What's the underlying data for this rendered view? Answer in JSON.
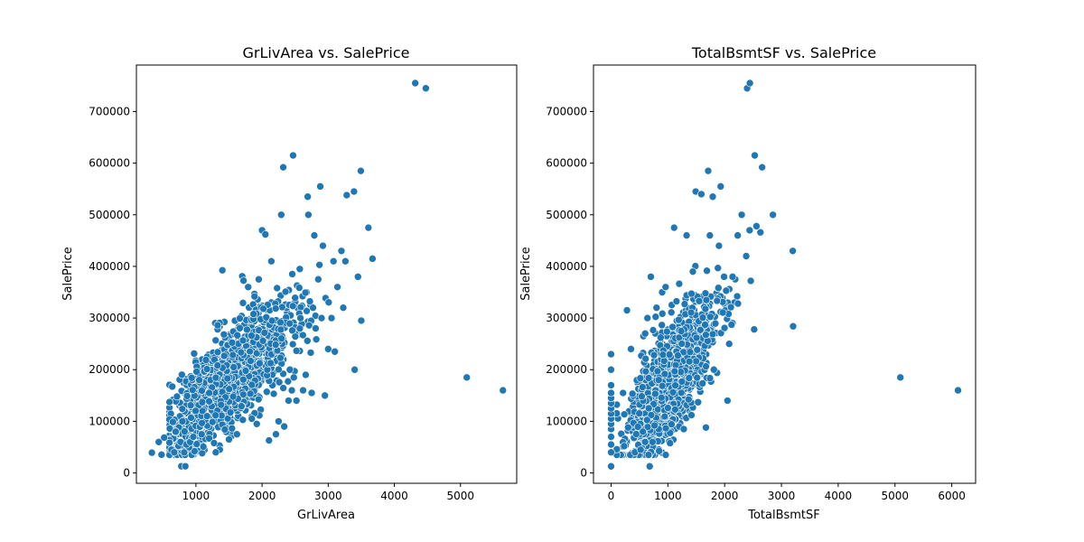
{
  "style": {
    "marker_color": "#1f77b4",
    "marker_edge": "#ffffff",
    "background": "#ffffff",
    "grid": false
  },
  "chart_data": [
    {
      "type": "scatter",
      "title": "GrLivArea vs. SalePrice",
      "xlabel": "GrLivArea",
      "ylabel": "SalePrice",
      "xlim": [
        100,
        5850
      ],
      "ylim": [
        -20000,
        790000
      ],
      "xticks": [
        1000,
        2000,
        3000,
        4000,
        5000
      ],
      "yticks": [
        0,
        100000,
        200000,
        300000,
        400000,
        500000,
        600000,
        700000
      ],
      "outliers": [
        [
          334,
          39300
        ],
        [
          438,
          60000
        ],
        [
          480,
          35311
        ],
        [
          520,
          68500
        ],
        [
          605,
          86000
        ],
        [
          630,
          45000
        ],
        [
          672,
          40000
        ],
        [
          694,
          80000
        ],
        [
          735,
          52500
        ],
        [
          768,
          60000
        ],
        [
          779,
          13000
        ],
        [
          796,
          100000
        ],
        [
          840,
          13000
        ],
        [
          858,
          55000
        ],
        [
          912,
          60000
        ],
        [
          960,
          70000
        ],
        [
          1012,
          56000
        ],
        [
          1050,
          180000
        ],
        [
          1086,
          75000
        ],
        [
          1096,
          137000
        ],
        [
          1168,
          110000
        ],
        [
          1200,
          155000
        ],
        [
          1300,
          40000
        ],
        [
          1328,
          286000
        ],
        [
          1380,
          132000
        ],
        [
          1400,
          392500
        ],
        [
          1500,
          65000
        ],
        [
          1620,
          75000
        ],
        [
          1700,
          381000
        ],
        [
          1720,
          372500
        ],
        [
          1790,
          360000
        ],
        [
          1845,
          105000
        ],
        [
          1920,
          95000
        ],
        [
          1950,
          375000
        ],
        [
          2000,
          470000
        ],
        [
          2020,
          318000
        ],
        [
          2050,
          462000
        ],
        [
          2105,
          63000
        ],
        [
          2140,
          410000
        ],
        [
          2210,
          75000
        ],
        [
          2250,
          100000
        ],
        [
          2290,
          500000
        ],
        [
          2320,
          592000
        ],
        [
          2335,
          90000
        ],
        [
          2400,
          140000
        ],
        [
          2420,
          200000
        ],
        [
          2450,
          160000
        ],
        [
          2469,
          615000
        ],
        [
          2480,
          185000
        ],
        [
          2520,
          140000
        ],
        [
          2570,
          395000
        ],
        [
          2580,
          300000
        ],
        [
          2620,
          160000
        ],
        [
          2660,
          190000
        ],
        [
          2690,
          535000
        ],
        [
          2700,
          500000
        ],
        [
          2750,
          155000
        ],
        [
          2770,
          320000
        ],
        [
          2790,
          460000
        ],
        [
          2810,
          280000
        ],
        [
          2850,
          375000
        ],
        [
          2880,
          555000
        ],
        [
          2900,
          300000
        ],
        [
          2920,
          440000
        ],
        [
          2950,
          150000
        ],
        [
          3000,
          240000
        ],
        [
          3050,
          300000
        ],
        [
          3080,
          410000
        ],
        [
          3100,
          235000
        ],
        [
          3140,
          360000
        ],
        [
          3200,
          430000
        ],
        [
          3228,
          320000
        ],
        [
          3260,
          410000
        ],
        [
          3280,
          538000
        ],
        [
          3390,
          545000
        ],
        [
          3400,
          200000
        ],
        [
          3450,
          380000
        ],
        [
          3493,
          585000
        ],
        [
          3500,
          295000
        ],
        [
          3608,
          475000
        ],
        [
          3670,
          415000
        ],
        [
          4316,
          755000
        ],
        [
          4476,
          745000
        ],
        [
          5095,
          185000
        ],
        [
          5642,
          160000
        ]
      ]
    },
    {
      "type": "scatter",
      "title": "TotalBsmtSF vs. SalePrice",
      "xlabel": "TotalBsmtSF",
      "ylabel": "SalePrice",
      "xlim": [
        -310,
        6420
      ],
      "ylim": [
        -20000,
        790000
      ],
      "xticks": [
        0,
        1000,
        2000,
        3000,
        4000,
        5000,
        6000
      ],
      "yticks": [
        0,
        100000,
        200000,
        300000,
        400000,
        500000,
        600000,
        700000
      ],
      "outliers": [
        [
          0,
          12800
        ],
        [
          0,
          40000
        ],
        [
          0,
          55000
        ],
        [
          0,
          70000
        ],
        [
          0,
          85000
        ],
        [
          0,
          95000
        ],
        [
          0,
          105000
        ],
        [
          0,
          115000
        ],
        [
          0,
          125000
        ],
        [
          0,
          135000
        ],
        [
          0,
          145000
        ],
        [
          0,
          155000
        ],
        [
          0,
          170000
        ],
        [
          0,
          200000
        ],
        [
          0,
          230000
        ],
        [
          280,
          315000
        ],
        [
          230,
          52000
        ],
        [
          300,
          88000
        ],
        [
          350,
          240000
        ],
        [
          420,
          40000
        ],
        [
          520,
          45000
        ],
        [
          560,
          80000
        ],
        [
          600,
          270000
        ],
        [
          640,
          300000
        ],
        [
          680,
          12800
        ],
        [
          700,
          380000
        ],
        [
          730,
          60000
        ],
        [
          800,
          320000
        ],
        [
          900,
          350000
        ],
        [
          960,
          360000
        ],
        [
          1110,
          475000
        ],
        [
          1200,
          90000
        ],
        [
          1280,
          85000
        ],
        [
          1330,
          460000
        ],
        [
          1440,
          390000
        ],
        [
          1490,
          545000
        ],
        [
          1590,
          540000
        ],
        [
          1670,
          88000
        ],
        [
          1710,
          585000
        ],
        [
          1740,
          460000
        ],
        [
          1790,
          535000
        ],
        [
          1810,
          200000
        ],
        [
          1900,
          440000
        ],
        [
          1930,
          555000
        ],
        [
          1990,
          380000
        ],
        [
          2050,
          140000
        ],
        [
          2080,
          250000
        ],
        [
          2140,
          380000
        ],
        [
          2230,
          460000
        ],
        [
          2300,
          500000
        ],
        [
          2380,
          420000
        ],
        [
          2396,
          745000
        ],
        [
          2440,
          470000
        ],
        [
          2444,
          755000
        ],
        [
          2460,
          372000
        ],
        [
          2520,
          278000
        ],
        [
          2530,
          615000
        ],
        [
          2560,
          478000
        ],
        [
          2630,
          466000
        ],
        [
          2660,
          592000
        ],
        [
          2850,
          500000
        ],
        [
          3200,
          430000
        ],
        [
          3206,
          284000
        ],
        [
          5095,
          185000
        ],
        [
          6110,
          160000
        ]
      ]
    }
  ]
}
